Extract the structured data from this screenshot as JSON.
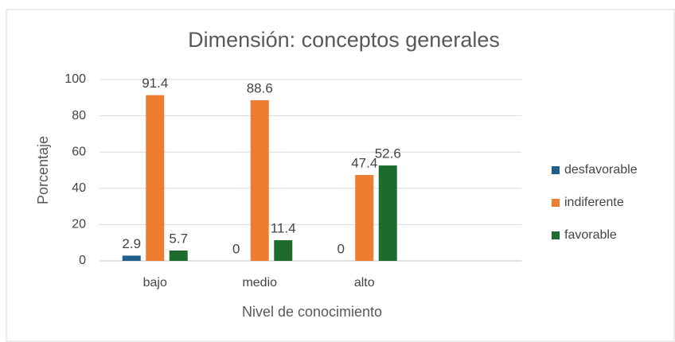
{
  "chart_data": {
    "type": "bar",
    "title": "Dimensión: conceptos generales",
    "x_label": "Nivel de conocimiento",
    "y_label": "Porcentaje",
    "categories": [
      "bajo",
      "medio",
      "alto",
      null
    ],
    "series": [
      {
        "name": "desfavorable",
        "color": "#1f5f8b",
        "values": [
          2.9,
          0,
          0,
          null
        ]
      },
      {
        "name": "indiferente",
        "color": "#ed7d31",
        "values": [
          91.4,
          88.6,
          47.4,
          null
        ]
      },
      {
        "name": "favorable",
        "color": "#1e6b2e",
        "values": [
          5.7,
          11.4,
          52.6,
          null
        ]
      }
    ],
    "ylim": [
      0,
      100
    ],
    "yticks": [
      0,
      20,
      40,
      60,
      80,
      100
    ],
    "grid": true,
    "legend": "right"
  }
}
